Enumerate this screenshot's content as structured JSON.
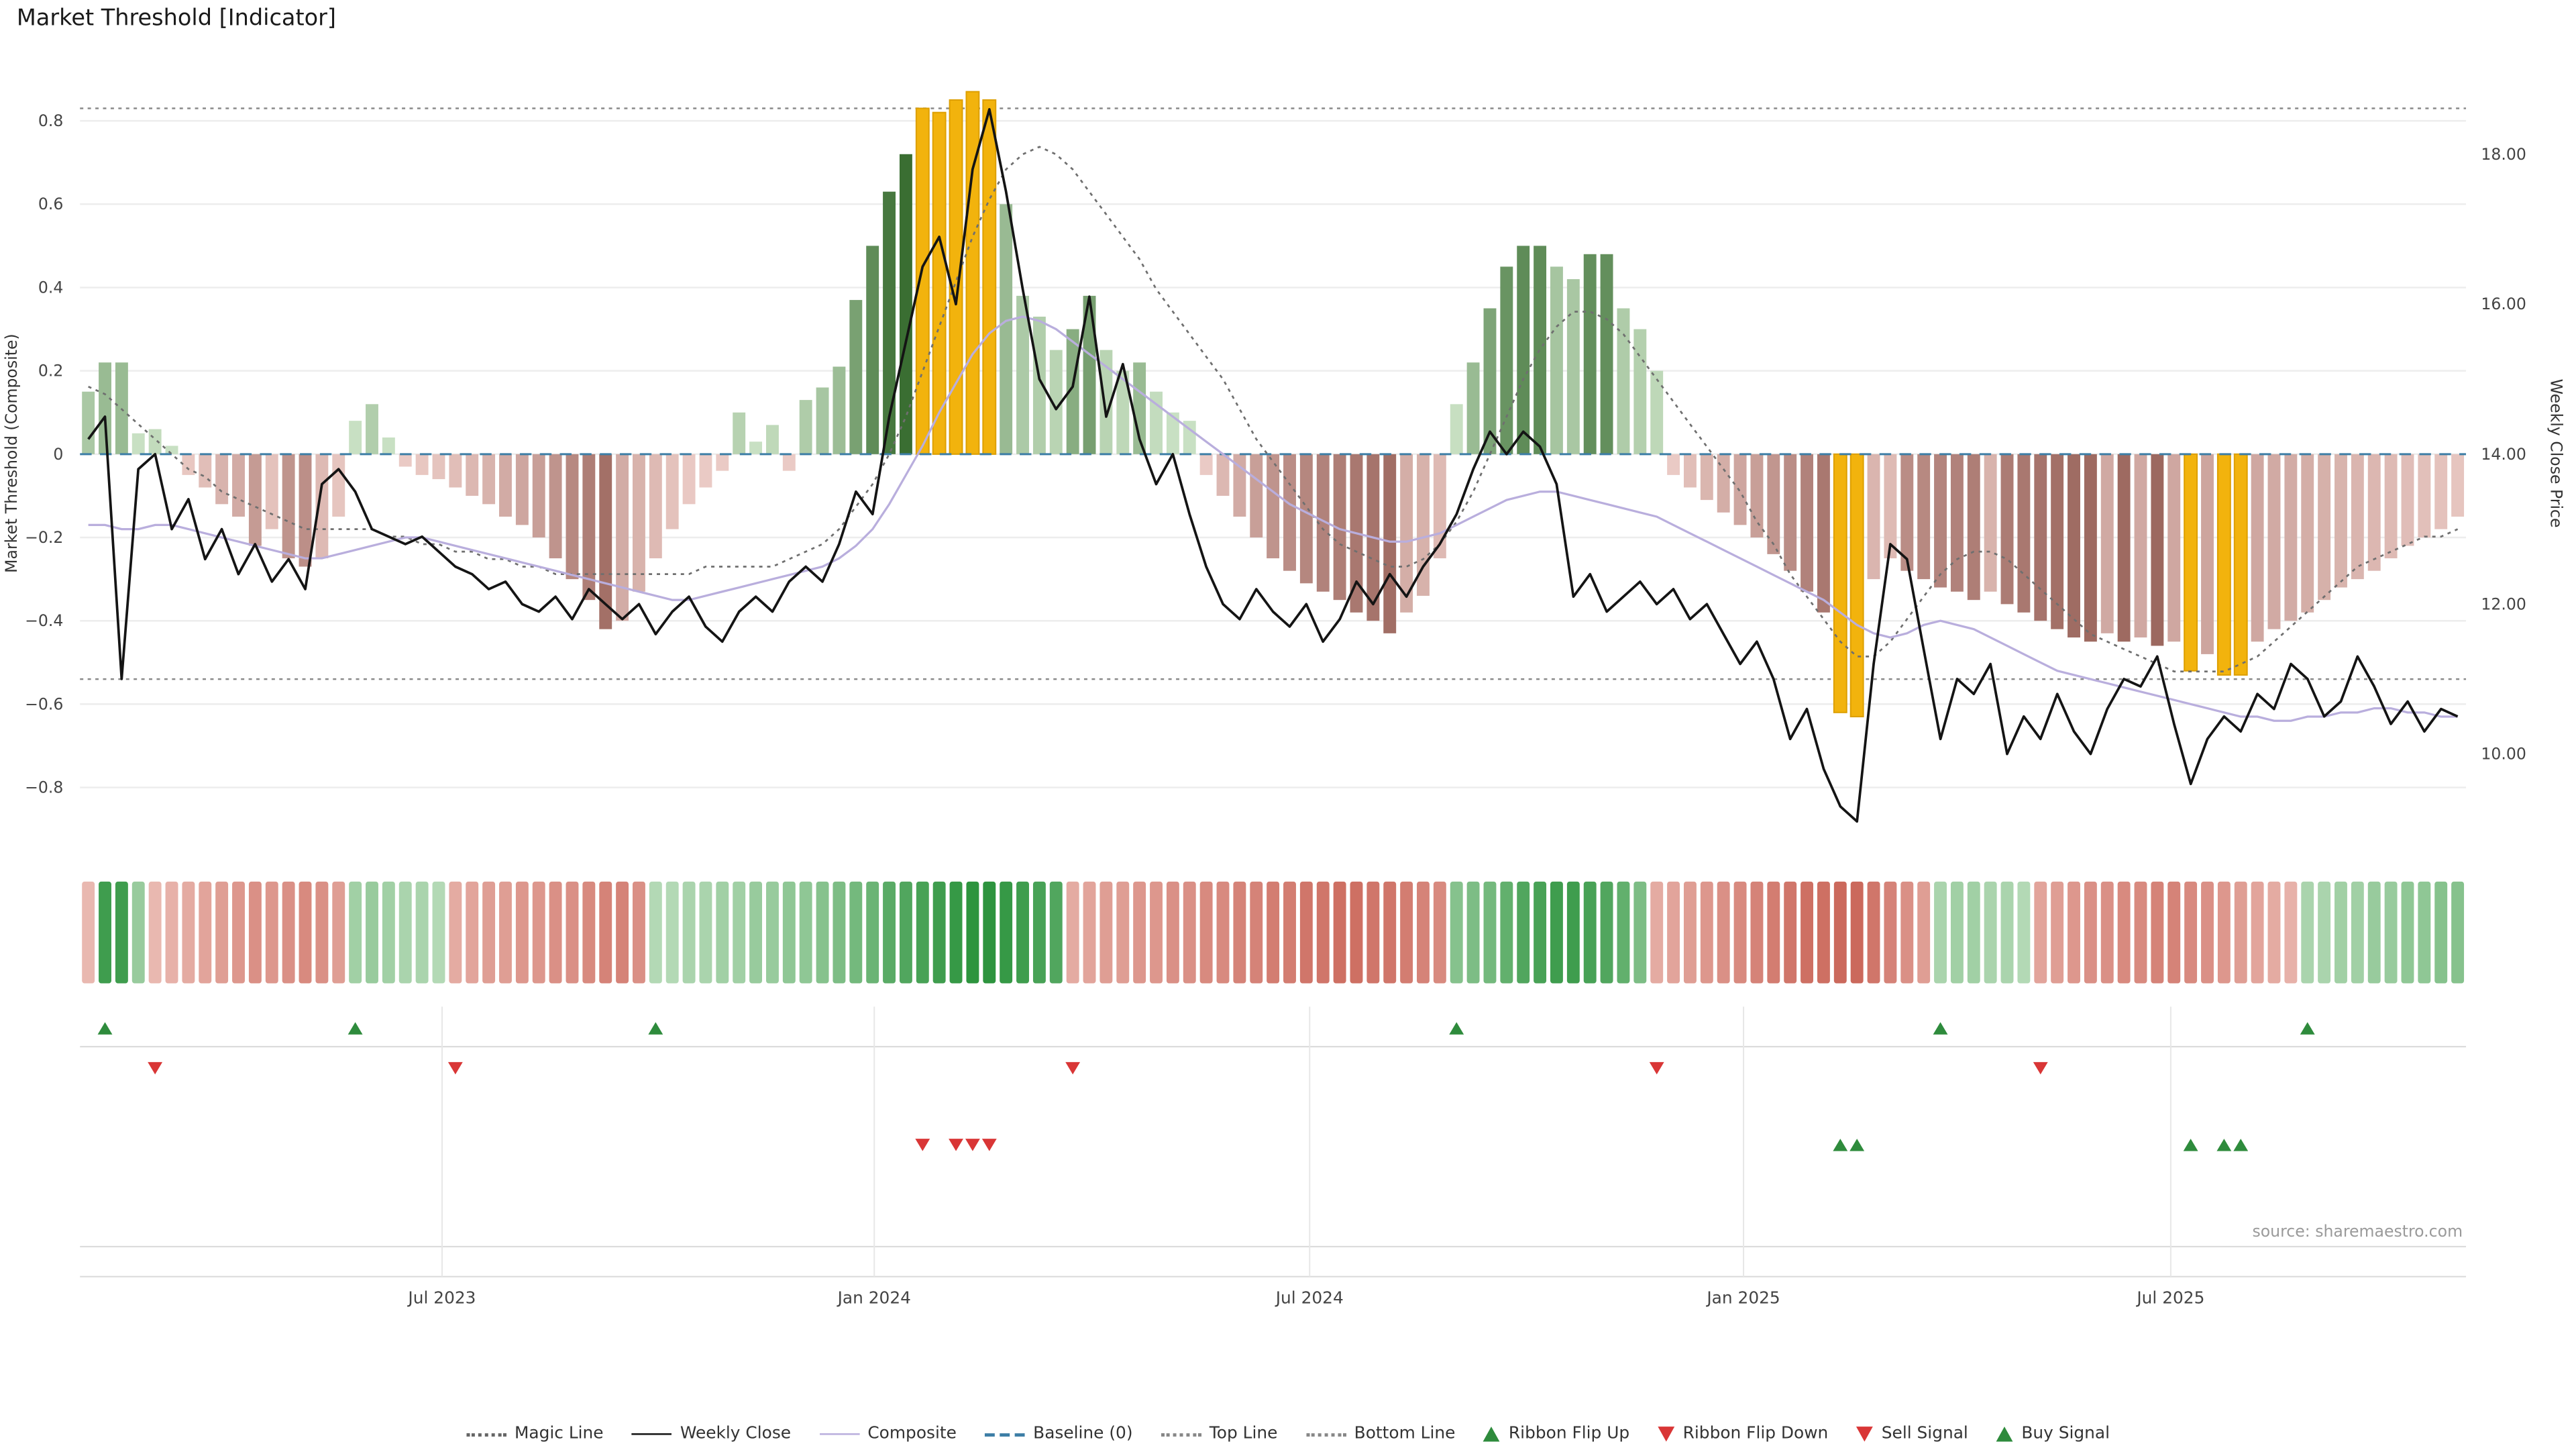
{
  "title": "Market Threshold [Indicator]",
  "source": "source: sharemaestro.com",
  "axes": {
    "left_label": "Market Threshold (Composite)",
    "right_label": "Weekly Close Price",
    "left_ticks": [
      {
        "v": 0.8,
        "label": "0.8"
      },
      {
        "v": 0.6,
        "label": "0.6"
      },
      {
        "v": 0.4,
        "label": "0.4"
      },
      {
        "v": 0.2,
        "label": "0.2"
      },
      {
        "v": 0,
        "label": "0"
      },
      {
        "v": -0.2,
        "label": "−0.2"
      },
      {
        "v": -0.4,
        "label": "−0.4"
      },
      {
        "v": -0.6,
        "label": "−0.6"
      },
      {
        "v": -0.8,
        "label": "−0.8"
      }
    ],
    "right_ticks": [
      {
        "v": 18,
        "label": "18.00"
      },
      {
        "v": 16,
        "label": "16.00"
      },
      {
        "v": 14,
        "label": "14.00"
      },
      {
        "v": 12,
        "label": "12.00"
      },
      {
        "v": 10,
        "label": "10.00"
      }
    ],
    "x_ticks": [
      {
        "label": "Jul 2023",
        "week": 21.2
      },
      {
        "label": "Jan 2024",
        "week": 47.1
      },
      {
        "label": "Jul 2024",
        "week": 73.2
      },
      {
        "label": "Jan 2025",
        "week": 99.2
      },
      {
        "label": "Jul 2025",
        "week": 124.8
      }
    ]
  },
  "chart_data": {
    "type": "bar",
    "x_unit": "week",
    "title": "Market Threshold [Indicator]",
    "left_ylim": [
      -0.95,
      0.95
    ],
    "right_ylim": [
      8.72,
      19.28
    ],
    "top_line": 0.83,
    "bottom_line": -0.54,
    "baseline": 0,
    "colors": {
      "bar_green_light": [
        216,
        237,
        211
      ],
      "bar_green_dark": [
        58,
        110,
        50
      ],
      "bar_red_light": [
        247,
        218,
        213
      ],
      "bar_red_dark": [
        120,
        58,
        48
      ],
      "signal_bar": "#f2b30d",
      "signal_bar_edge": "#dd9f00",
      "ribbon_green_light": [
        223,
        240,
        220
      ],
      "ribbon_green_dark": [
        45,
        148,
        62
      ],
      "ribbon_red_light": [
        248,
        223,
        218
      ],
      "ribbon_red_dark": [
        198,
        92,
        78
      ],
      "weekly_close": "#141414",
      "magic_line": "#6f6f6f",
      "composite": "#b9aedd",
      "baseline": "#3d7ea6",
      "top_bottom_line": "#8a8a8a",
      "buy": "#2e8b3c",
      "sell": "#d93636",
      "flip_up": "#2e8b3c",
      "flip_down": "#d93636"
    },
    "threshold": [
      0.15,
      0.22,
      0.22,
      0.05,
      0.06,
      0.02,
      -0.05,
      -0.08,
      -0.12,
      -0.15,
      -0.22,
      -0.18,
      -0.25,
      -0.27,
      -0.25,
      -0.15,
      0.08,
      0.12,
      0.04,
      -0.03,
      -0.05,
      -0.06,
      -0.08,
      -0.1,
      -0.12,
      -0.15,
      -0.17,
      -0.2,
      -0.25,
      -0.3,
      -0.35,
      -0.42,
      -0.4,
      -0.33,
      -0.25,
      -0.18,
      -0.12,
      -0.08,
      -0.04,
      0.1,
      0.03,
      0.07,
      -0.04,
      0.13,
      0.16,
      0.21,
      0.37,
      0.5,
      0.63,
      0.72,
      0.83,
      0.82,
      0.85,
      0.87,
      0.85,
      0.6,
      0.38,
      0.33,
      0.25,
      0.3,
      0.38,
      0.25,
      0.2,
      0.22,
      0.15,
      0.1,
      0.08,
      -0.05,
      -0.1,
      -0.15,
      -0.2,
      -0.25,
      -0.28,
      -0.31,
      -0.33,
      -0.35,
      -0.38,
      -0.4,
      -0.43,
      -0.38,
      -0.34,
      -0.25,
      0.12,
      0.22,
      0.35,
      0.45,
      0.5,
      0.5,
      0.45,
      0.42,
      0.48,
      0.48,
      0.35,
      0.3,
      0.2,
      -0.05,
      -0.08,
      -0.11,
      -0.14,
      -0.17,
      -0.2,
      -0.24,
      -0.28,
      -0.33,
      -0.38,
      -0.62,
      -0.63,
      -0.3,
      -0.25,
      -0.28,
      -0.3,
      -0.32,
      -0.33,
      -0.35,
      -0.33,
      -0.36,
      -0.38,
      -0.4,
      -0.42,
      -0.44,
      -0.45,
      -0.43,
      -0.45,
      -0.44,
      -0.46,
      -0.45,
      -0.52,
      -0.48,
      -0.53,
      -0.53,
      -0.45,
      -0.42,
      -0.4,
      -0.38,
      -0.35,
      -0.32,
      -0.3,
      -0.28,
      -0.25,
      -0.22,
      -0.2,
      -0.18,
      -0.15
    ],
    "signal_bar_weeks": [
      50,
      51,
      52,
      53,
      54,
      105,
      106,
      126,
      128,
      129
    ],
    "weekly_close": [
      14.2,
      14.5,
      11.0,
      13.8,
      14.0,
      13.0,
      13.4,
      12.6,
      13.0,
      12.4,
      12.8,
      12.3,
      12.6,
      12.2,
      13.6,
      13.8,
      13.5,
      13.0,
      12.9,
      12.8,
      12.9,
      12.7,
      12.5,
      12.4,
      12.2,
      12.3,
      12.0,
      11.9,
      12.1,
      11.8,
      12.2,
      12.0,
      11.8,
      12.0,
      11.6,
      11.9,
      12.1,
      11.7,
      11.5,
      11.9,
      12.1,
      11.9,
      12.3,
      12.5,
      12.3,
      12.8,
      13.5,
      13.2,
      14.5,
      15.5,
      16.5,
      16.9,
      16.0,
      17.8,
      18.6,
      17.5,
      16.2,
      15.0,
      14.6,
      14.9,
      16.1,
      14.5,
      15.2,
      14.2,
      13.6,
      14.0,
      13.2,
      12.5,
      12.0,
      11.8,
      12.2,
      11.9,
      11.7,
      12.0,
      11.5,
      11.8,
      12.3,
      12.0,
      12.4,
      12.1,
      12.5,
      12.8,
      13.2,
      13.8,
      14.3,
      14.0,
      14.3,
      14.1,
      13.6,
      12.1,
      12.4,
      11.9,
      12.1,
      12.3,
      12.0,
      12.2,
      11.8,
      12.0,
      11.6,
      11.2,
      11.5,
      11.0,
      10.2,
      10.6,
      9.8,
      9.3,
      9.1,
      11.2,
      12.8,
      12.6,
      11.4,
      10.2,
      11.0,
      10.8,
      11.2,
      10.0,
      10.5,
      10.2,
      10.8,
      10.3,
      10.0,
      10.6,
      11.0,
      10.9,
      11.3,
      10.4,
      9.6,
      10.2,
      10.5,
      10.3,
      10.8,
      10.6,
      11.2,
      11.0,
      10.5,
      10.7,
      11.3,
      10.9,
      10.4,
      10.7,
      10.3,
      10.6,
      10.5
    ],
    "magic_line": [
      14.9,
      14.8,
      14.6,
      14.4,
      14.2,
      14.0,
      13.8,
      13.7,
      13.5,
      13.4,
      13.3,
      13.2,
      13.1,
      13.0,
      13.0,
      13.0,
      13.0,
      13.0,
      12.9,
      12.9,
      12.8,
      12.8,
      12.7,
      12.7,
      12.6,
      12.6,
      12.5,
      12.5,
      12.4,
      12.4,
      12.4,
      12.4,
      12.4,
      12.4,
      12.4,
      12.4,
      12.4,
      12.5,
      12.5,
      12.5,
      12.5,
      12.5,
      12.6,
      12.7,
      12.8,
      13.0,
      13.3,
      13.6,
      14.0,
      14.5,
      15.1,
      15.7,
      16.3,
      16.9,
      17.4,
      17.8,
      18.0,
      18.1,
      18.0,
      17.8,
      17.5,
      17.2,
      16.9,
      16.6,
      16.2,
      15.9,
      15.6,
      15.3,
      15.0,
      14.6,
      14.2,
      13.9,
      13.6,
      13.3,
      13.0,
      12.8,
      12.7,
      12.6,
      12.5,
      12.5,
      12.6,
      12.8,
      13.1,
      13.5,
      14.0,
      14.5,
      15.0,
      15.4,
      15.7,
      15.9,
      15.9,
      15.8,
      15.6,
      15.3,
      15.0,
      14.7,
      14.4,
      14.1,
      13.8,
      13.5,
      13.1,
      12.8,
      12.4,
      12.1,
      11.8,
      11.5,
      11.3,
      11.3,
      11.5,
      11.8,
      12.1,
      12.4,
      12.6,
      12.7,
      12.7,
      12.6,
      12.4,
      12.2,
      12.0,
      11.8,
      11.6,
      11.5,
      11.4,
      11.3,
      11.2,
      11.1,
      11.1,
      11.1,
      11.1,
      11.2,
      11.3,
      11.5,
      11.7,
      11.9,
      12.1,
      12.3,
      12.5,
      12.6,
      12.7,
      12.8,
      12.9,
      12.9,
      13.0
    ],
    "composite": [
      -0.17,
      -0.17,
      -0.18,
      -0.18,
      -0.17,
      -0.17,
      -0.18,
      -0.19,
      -0.2,
      -0.21,
      -0.22,
      -0.23,
      -0.24,
      -0.25,
      -0.25,
      -0.24,
      -0.23,
      -0.22,
      -0.21,
      -0.2,
      -0.2,
      -0.21,
      -0.22,
      -0.23,
      -0.24,
      -0.25,
      -0.26,
      -0.27,
      -0.28,
      -0.29,
      -0.3,
      -0.31,
      -0.32,
      -0.33,
      -0.34,
      -0.35,
      -0.35,
      -0.34,
      -0.33,
      -0.32,
      -0.31,
      -0.3,
      -0.29,
      -0.28,
      -0.27,
      -0.25,
      -0.22,
      -0.18,
      -0.12,
      -0.05,
      0.02,
      0.1,
      0.17,
      0.24,
      0.29,
      0.32,
      0.33,
      0.32,
      0.3,
      0.27,
      0.24,
      0.21,
      0.18,
      0.15,
      0.12,
      0.09,
      0.06,
      0.03,
      0.0,
      -0.03,
      -0.06,
      -0.09,
      -0.12,
      -0.14,
      -0.16,
      -0.18,
      -0.19,
      -0.2,
      -0.21,
      -0.21,
      -0.2,
      -0.19,
      -0.17,
      -0.15,
      -0.13,
      -0.11,
      -0.1,
      -0.09,
      -0.09,
      -0.1,
      -0.11,
      -0.12,
      -0.13,
      -0.14,
      -0.15,
      -0.17,
      -0.19,
      -0.21,
      -0.23,
      -0.25,
      -0.27,
      -0.29,
      -0.31,
      -0.33,
      -0.35,
      -0.38,
      -0.41,
      -0.43,
      -0.44,
      -0.43,
      -0.41,
      -0.4,
      -0.41,
      -0.42,
      -0.44,
      -0.46,
      -0.48,
      -0.5,
      -0.52,
      -0.53,
      -0.54,
      -0.55,
      -0.56,
      -0.57,
      -0.58,
      -0.59,
      -0.6,
      -0.61,
      -0.62,
      -0.63,
      -0.63,
      -0.64,
      -0.64,
      -0.63,
      -0.63,
      -0.62,
      -0.62,
      -0.61,
      -0.61,
      -0.62,
      -0.62,
      -0.63,
      -0.63
    ],
    "ribbon": [
      -0.3,
      0.9,
      0.9,
      0.4,
      -0.3,
      -0.35,
      -0.4,
      -0.45,
      -0.5,
      -0.55,
      -0.6,
      -0.55,
      -0.6,
      -0.65,
      -0.6,
      -0.5,
      0.35,
      0.4,
      0.35,
      0.3,
      0.3,
      0.25,
      -0.4,
      -0.45,
      -0.5,
      -0.5,
      -0.55,
      -0.55,
      -0.6,
      -0.6,
      -0.65,
      -0.7,
      -0.7,
      -0.6,
      0.25,
      0.25,
      0.3,
      0.3,
      0.35,
      0.35,
      0.4,
      0.4,
      0.45,
      0.45,
      0.5,
      0.55,
      0.6,
      0.65,
      0.75,
      0.8,
      0.85,
      0.9,
      0.95,
      1.0,
      1.0,
      0.95,
      0.9,
      0.85,
      0.8,
      -0.4,
      -0.45,
      -0.5,
      -0.5,
      -0.55,
      -0.55,
      -0.6,
      -0.6,
      -0.65,
      -0.65,
      -0.7,
      -0.7,
      -0.75,
      -0.75,
      -0.8,
      -0.8,
      -0.85,
      -0.85,
      -0.8,
      -0.8,
      -0.75,
      -0.7,
      -0.65,
      0.5,
      0.55,
      0.6,
      0.7,
      0.8,
      0.85,
      0.9,
      0.9,
      0.85,
      0.8,
      0.7,
      0.55,
      -0.4,
      -0.45,
      -0.5,
      -0.55,
      -0.6,
      -0.65,
      -0.7,
      -0.75,
      -0.8,
      -0.85,
      -0.85,
      -0.9,
      -0.9,
      -0.8,
      -0.7,
      -0.6,
      -0.5,
      0.3,
      0.35,
      0.35,
      0.3,
      0.3,
      0.25,
      -0.45,
      -0.5,
      -0.55,
      -0.6,
      -0.6,
      -0.65,
      -0.65,
      -0.7,
      -0.7,
      -0.65,
      -0.6,
      -0.55,
      -0.5,
      -0.45,
      -0.4,
      -0.35,
      0.3,
      0.3,
      0.35,
      0.35,
      0.4,
      0.4,
      0.45,
      0.45,
      0.5,
      0.5
    ],
    "signals": {
      "ribbon_flip_up": [
        1,
        16,
        34,
        82,
        111,
        133
      ],
      "ribbon_flip_down": [
        4,
        22,
        59,
        94,
        117
      ],
      "sell": [
        50,
        52,
        53,
        54
      ],
      "buy": [
        105,
        106,
        126,
        128,
        129
      ]
    }
  },
  "legend": {
    "position": "bottom",
    "items": [
      {
        "label": "Magic Line",
        "swatch": "dotted",
        "color": "#666666"
      },
      {
        "label": "Weekly Close",
        "swatch": "solid",
        "color": "#111111"
      },
      {
        "label": "Composite",
        "swatch": "solid",
        "color": "#b9aedd"
      },
      {
        "label": "Baseline (0)",
        "swatch": "dashed",
        "color": "#3d7ea6"
      },
      {
        "label": "Top Line",
        "swatch": "dotted",
        "color": "#888888"
      },
      {
        "label": "Bottom Line",
        "swatch": "dotted",
        "color": "#888888"
      },
      {
        "label": "Ribbon Flip Up",
        "swatch": "triangle-up",
        "color": "#2e8b3c"
      },
      {
        "label": "Ribbon Flip Down",
        "swatch": "triangle-down",
        "color": "#d93636"
      },
      {
        "label": "Sell Signal",
        "swatch": "triangle-down",
        "color": "#d93636"
      },
      {
        "label": "Buy Signal",
        "swatch": "triangle-up",
        "color": "#2e8b3c"
      }
    ]
  }
}
